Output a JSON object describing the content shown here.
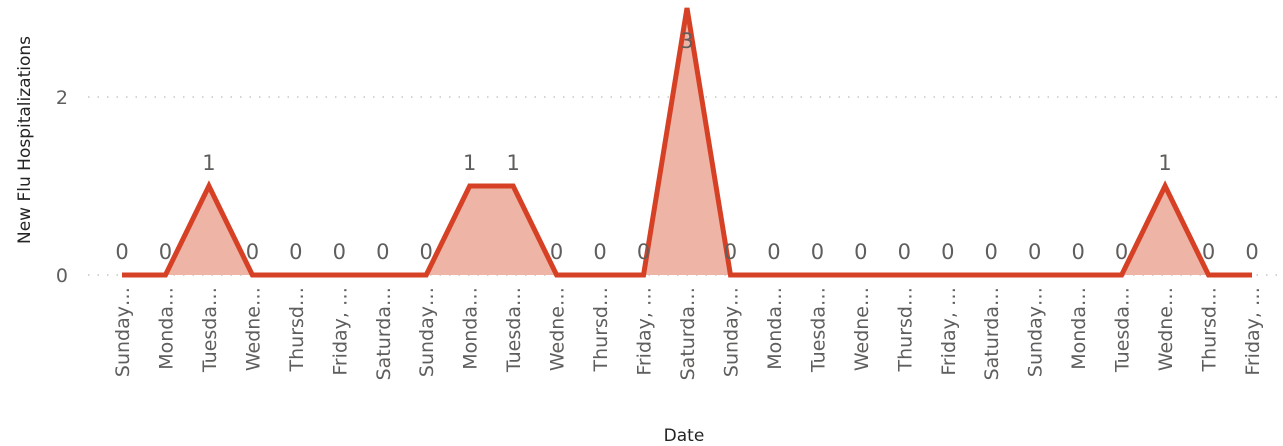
{
  "chart_data": {
    "type": "area",
    "title": "",
    "xlabel": "Date",
    "ylabel": "New Flu Hospitalizations",
    "ylim": [
      0,
      3
    ],
    "yticks": [
      0,
      2
    ],
    "grid": true,
    "legend": "none",
    "colors": {
      "line": "#d64126",
      "fill": "#eeb4a6",
      "grid": "#c8c6c4",
      "text": "#605e5c"
    },
    "categories": [
      "Sunday…",
      "Monda…",
      "Tuesda…",
      "Wedne…",
      "Thursd…",
      "Friday, …",
      "Saturda…",
      "Sunday…",
      "Monda…",
      "Tuesda…",
      "Wedne…",
      "Thursd…",
      "Friday, …",
      "Saturda…",
      "Sunday…",
      "Monda…",
      "Tuesda…",
      "Wedne…",
      "Thursd…",
      "Friday, …",
      "Saturda…",
      "Sunday…",
      "Monda…",
      "Tuesda…",
      "Wedne…",
      "Thursd…",
      "Friday, …"
    ],
    "values": [
      0,
      0,
      1,
      0,
      0,
      0,
      0,
      0,
      1,
      1,
      0,
      0,
      0,
      3,
      0,
      0,
      0,
      0,
      0,
      0,
      0,
      0,
      0,
      0,
      1,
      0,
      0
    ],
    "data_labels": [
      "0",
      "0",
      "1",
      "0",
      "0",
      "0",
      "0",
      "0",
      "1",
      "1",
      "0",
      "0",
      "0",
      "3",
      "0",
      "0",
      "0",
      "0",
      "0",
      "0",
      "0",
      "0",
      "0",
      "0",
      "1",
      "0",
      "0"
    ]
  }
}
